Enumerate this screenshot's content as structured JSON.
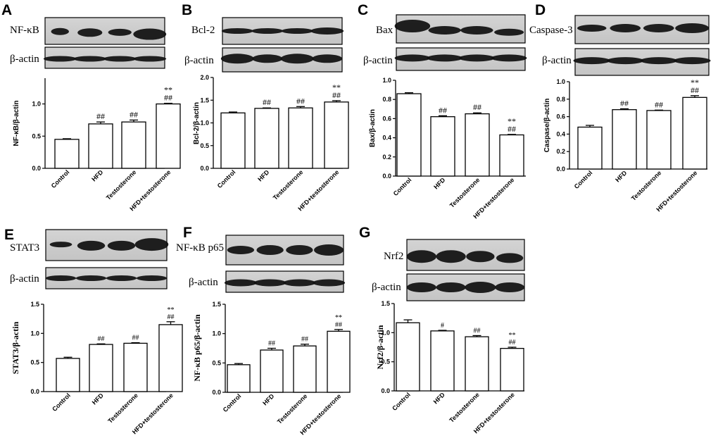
{
  "chart_data": [
    {
      "panel": "A",
      "type": "bar",
      "blot": {
        "protein": "NF-κB",
        "control": "β-actin"
      },
      "ylabel": "NF-κB/β-actin",
      "categories": [
        "Control",
        "HFD",
        "Testosterone",
        "HFD+testosterone"
      ],
      "values": [
        0.45,
        0.69,
        0.72,
        1.0
      ],
      "errors": [
        0.01,
        0.03,
        0.03,
        0.01
      ],
      "ylim": [
        0,
        1.4
      ],
      "yticks": [
        "0.0",
        "0.5",
        "1.0"
      ],
      "annotations": [
        "",
        "##",
        "##",
        "**\n##"
      ]
    },
    {
      "panel": "B",
      "type": "bar",
      "blot": {
        "protein": "Bcl-2",
        "control": "β-actin"
      },
      "ylabel": "Bcl-2/β-actin",
      "categories": [
        "Control",
        "HFD",
        "Testosterone",
        "HFD+testosterone"
      ],
      "values": [
        1.22,
        1.32,
        1.33,
        1.46
      ],
      "errors": [
        0.02,
        0.01,
        0.03,
        0.03
      ],
      "ylim": [
        0,
        2.0
      ],
      "yticks": [
        "0.0",
        "0.5",
        "1.0",
        "1.5",
        "2.0"
      ],
      "annotations": [
        "",
        "##",
        "##",
        "**\n##"
      ]
    },
    {
      "panel": "C",
      "type": "bar",
      "blot": {
        "protein": "Bax",
        "control": "β-actin"
      },
      "ylabel": "Bax/β-actin",
      "categories": [
        "Control",
        "HFD",
        "Testosterone",
        "HFD+testosterone"
      ],
      "values": [
        0.86,
        0.62,
        0.65,
        0.43
      ],
      "errors": [
        0.01,
        0.01,
        0.01,
        0.005
      ],
      "ylim": [
        0,
        1.0
      ],
      "yticks": [
        "0.0",
        "0.2",
        "0.4",
        "0.6",
        "0.8",
        "1.0"
      ],
      "annotations": [
        "",
        "##",
        "##",
        "**\n##"
      ]
    },
    {
      "panel": "D",
      "type": "bar",
      "blot": {
        "protein": "Caspase-3",
        "control": "β-actin"
      },
      "ylabel": "Caspase/β-actin",
      "categories": [
        "Control",
        "HFD",
        "Testosterone",
        "HFD+testosterone"
      ],
      "values": [
        0.48,
        0.68,
        0.67,
        0.82
      ],
      "errors": [
        0.02,
        0.01,
        0.005,
        0.02
      ],
      "ylim": [
        0,
        1.0
      ],
      "yticks": [
        "0.0",
        "0.2",
        "0.4",
        "0.6",
        "0.8",
        "1.0"
      ],
      "annotations": [
        "",
        "##",
        "##",
        "**\n##"
      ]
    },
    {
      "panel": "E",
      "type": "bar",
      "blot": {
        "protein": "STAT3",
        "control": "β-actin"
      },
      "ylabel": "STAT3/β-actin",
      "categories": [
        "Control",
        "HFD",
        "Testosterone",
        "HFD+testosterone"
      ],
      "values": [
        0.57,
        0.81,
        0.83,
        1.15
      ],
      "errors": [
        0.02,
        0.01,
        0.01,
        0.05
      ],
      "ylim": [
        0,
        1.5
      ],
      "yticks": [
        "0.0",
        "0.5",
        "1.0",
        "1.5"
      ],
      "annotations": [
        "",
        "##",
        "##",
        "**\n##"
      ]
    },
    {
      "panel": "F",
      "type": "bar",
      "blot": {
        "protein": "NF-κB p65",
        "control": "β-actin"
      },
      "ylabel": "NF-κB p65/β-actin",
      "categories": [
        "Control",
        "HFD",
        "Testosterone",
        "HFD+testosterone"
      ],
      "values": [
        0.47,
        0.72,
        0.79,
        1.04
      ],
      "errors": [
        0.02,
        0.03,
        0.03,
        0.03
      ],
      "ylim": [
        0,
        1.5
      ],
      "yticks": [
        "0.0",
        "0.5",
        "1.0",
        "1.5"
      ],
      "annotations": [
        "",
        "##",
        "##",
        "**\n##"
      ]
    },
    {
      "panel": "G",
      "type": "bar",
      "blot": {
        "protein": "Nrf2",
        "control": "β-actin"
      },
      "ylabel": "Nrf2/β-actin",
      "categories": [
        "Control",
        "HFD",
        "Testosterone",
        "HFD+testosterone"
      ],
      "values": [
        1.17,
        1.03,
        0.93,
        0.73
      ],
      "errors": [
        0.05,
        0.01,
        0.02,
        0.02
      ],
      "ylim": [
        0,
        1.5
      ],
      "yticks": [
        "0.0",
        "0.5",
        "1.0",
        "1.5"
      ],
      "annotations": [
        "",
        "#",
        "##",
        "**\n##"
      ]
    }
  ]
}
